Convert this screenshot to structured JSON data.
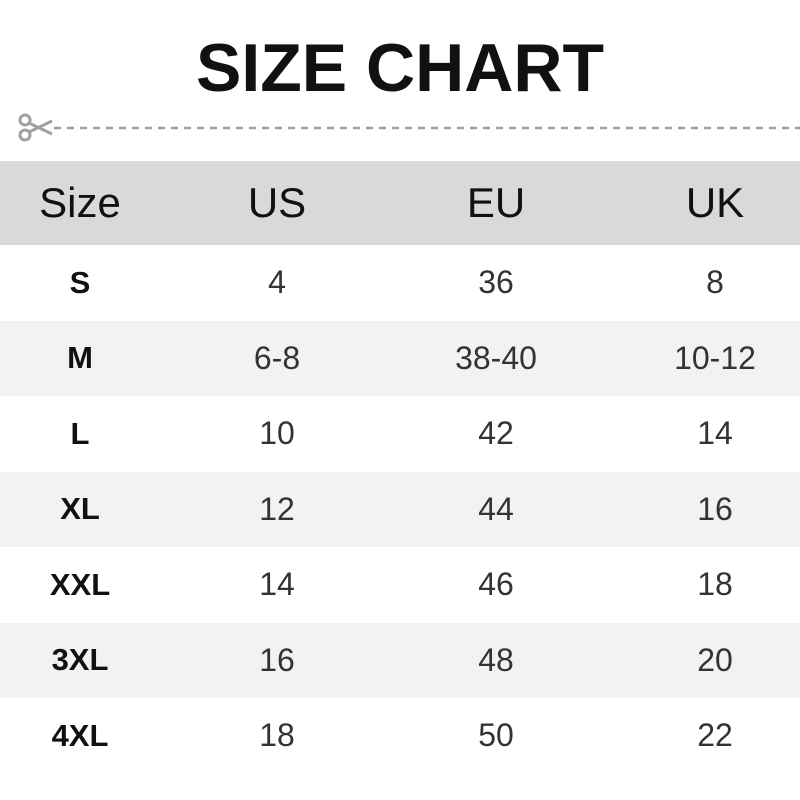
{
  "title": "SIZE CHART",
  "icons": {
    "cut_line": "scissors-icon"
  },
  "colors": {
    "header_bg": "#d9d9d9",
    "alt_row_bg": "#f2f2f2",
    "dash": "#a0a0a0"
  },
  "table": {
    "headers": [
      "Size",
      "US",
      "EU",
      "UK"
    ],
    "rows": [
      [
        "S",
        "4",
        "36",
        "8"
      ],
      [
        "M",
        "6-8",
        "38-40",
        "10-12"
      ],
      [
        "L",
        "10",
        "42",
        "14"
      ],
      [
        "XL",
        "12",
        "44",
        "16"
      ],
      [
        "XXL",
        "14",
        "46",
        "18"
      ],
      [
        "3XL",
        "16",
        "48",
        "20"
      ],
      [
        "4XL",
        "18",
        "50",
        "22"
      ]
    ]
  }
}
